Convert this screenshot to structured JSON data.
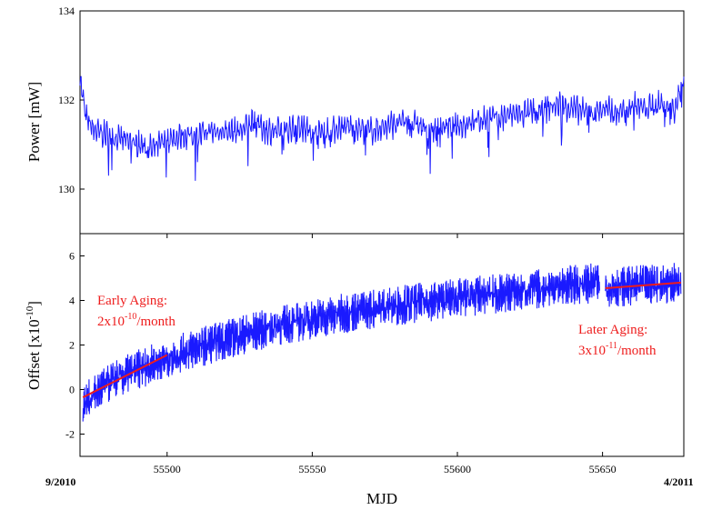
{
  "chart_data": [
    {
      "type": "line",
      "ylabel": "Power [mW]",
      "xlim": [
        55470,
        55678
      ],
      "ylim": [
        129,
        134
      ],
      "yticks": [
        130,
        132,
        134
      ],
      "color": "#1a1aff",
      "series": [
        {
          "x": [
            55470,
            55472,
            55475,
            55480,
            55485,
            55490,
            55495,
            55500,
            55505,
            55510,
            55515,
            55520,
            55525,
            55530,
            55535,
            55540,
            55545,
            55550,
            55555,
            55560,
            55565,
            55570,
            55575,
            55580,
            55585,
            55590,
            55595,
            55600,
            55605,
            55610,
            55615,
            55620,
            55625,
            55630,
            55635,
            55640,
            55645,
            55650,
            55655,
            55660,
            55665,
            55670,
            55675,
            55678
          ],
          "values": [
            132.5,
            131.6,
            131.3,
            131.2,
            131.1,
            131.0,
            130.9,
            131.1,
            131.2,
            131.2,
            131.3,
            131.3,
            131.3,
            131.5,
            131.3,
            131.3,
            131.4,
            131.3,
            131.3,
            131.4,
            131.4,
            131.3,
            131.4,
            131.5,
            131.5,
            131.3,
            131.4,
            131.4,
            131.5,
            131.6,
            131.6,
            131.7,
            131.7,
            131.8,
            131.9,
            131.8,
            131.7,
            131.8,
            131.7,
            131.9,
            131.8,
            131.9,
            131.8,
            132.5
          ]
        }
      ]
    },
    {
      "type": "line",
      "ylabel": "Offset [x10^-10]",
      "xlabel": "MJD",
      "xlim": [
        55470,
        55678
      ],
      "ylim": [
        -3,
        7
      ],
      "xticks": [
        55500,
        55550,
        55600,
        55650
      ],
      "yticks": [
        -2,
        0,
        2,
        4,
        6
      ],
      "color": "#1a1aff",
      "series": [
        {
          "x": [
            55471,
            55475,
            55480,
            55490,
            55500,
            55510,
            55520,
            55530,
            55540,
            55550,
            55560,
            55570,
            55580,
            55590,
            55600,
            55610,
            55620,
            55630,
            55640,
            55649
          ],
          "values": [
            -0.7,
            -0.2,
            0.3,
            0.9,
            1.4,
            1.85,
            2.25,
            2.6,
            2.9,
            3.15,
            3.4,
            3.6,
            3.8,
            3.95,
            4.1,
            4.25,
            4.4,
            4.55,
            4.7,
            4.8
          ]
        },
        {
          "x": [
            55651,
            55660,
            55670,
            55677
          ],
          "values": [
            4.6,
            4.65,
            4.75,
            4.8
          ]
        }
      ],
      "fits": [
        {
          "x": [
            55471,
            55500
          ],
          "values": [
            -0.35,
            1.55
          ],
          "color": "#ee1c1c"
        },
        {
          "x": [
            55651,
            55677
          ],
          "values": [
            4.55,
            4.8
          ],
          "color": "#ee1c1c"
        }
      ],
      "annotations": [
        {
          "id": "early",
          "title": "Early Aging:",
          "prefix": "2x10",
          "exp": "-10",
          "suffix": "/month"
        },
        {
          "id": "later",
          "title": "Later Aging:",
          "prefix": "3x10",
          "exp": "-11",
          "suffix": "/month"
        }
      ]
    }
  ],
  "labels": {
    "date_left": "9/2010",
    "date_right": "4/2011",
    "power_label": "Power [mW]",
    "offset_label_main": "Offset [x10",
    "offset_label_exp": "-10",
    "offset_label_end": "]",
    "xlabel": "MJD"
  }
}
